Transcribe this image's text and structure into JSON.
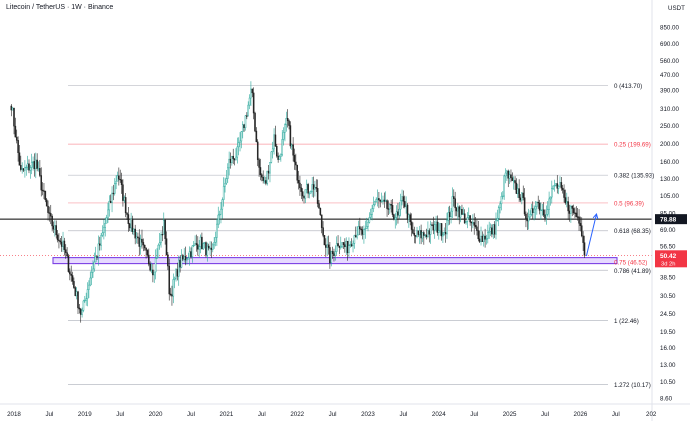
{
  "header": {
    "symbol_title": "Litecoin / TetherUS · 1W · Binance",
    "currency": "USDT"
  },
  "colors": {
    "up": "#26a69a",
    "down": "#222222",
    "fib_gray": "#b2b5be",
    "fib_red": "#f23645",
    "box_fill": "#e6d9ff",
    "box_border": "#7b3fe4",
    "arrow": "#2962ff",
    "price_line": "#000000",
    "last_price_bg": "#f23645"
  },
  "chart_data": {
    "type": "candlestick",
    "title": "Litecoin / TetherUS · 1W · Binance",
    "y_axis_ticks": [
      "850.00",
      "690.00",
      "560.00",
      "470.00",
      "390.00",
      "310.00",
      "250.00",
      "200.00",
      "160.00",
      "130.00",
      "105.00",
      "85.00",
      "69.00",
      "56.50",
      "46.00",
      "38.50",
      "30.50",
      "24.50",
      "19.50",
      "16.00",
      "13.00",
      "10.50",
      "8.60"
    ],
    "x_axis_ticks": [
      "2018",
      "Jul",
      "2019",
      "Jul",
      "2020",
      "Jul",
      "2021",
      "Jul",
      "2022",
      "Jul",
      "2023",
      "Jul",
      "2024",
      "Jul",
      "2025",
      "Jul",
      "2026",
      "Jul",
      "202"
    ],
    "y_scale": "log",
    "ylim": [
      8.0,
      1000
    ],
    "fib_levels": [
      {
        "label": "0 (413.70)",
        "value": 413.7,
        "style": "gray"
      },
      {
        "label": "0.25 (199.69)",
        "value": 199.69,
        "style": "red"
      },
      {
        "label": "0.382 (135.93)",
        "value": 135.93,
        "style": "gray"
      },
      {
        "label": "0.5 (96.39)",
        "value": 96.39,
        "style": "red"
      },
      {
        "label": "0.618 (68.35)",
        "value": 68.35,
        "style": "gray"
      },
      {
        "label": "0.75 (46.52)",
        "value": 46.52,
        "style": "red"
      },
      {
        "label": "0.786 (41.89)",
        "value": 41.89,
        "style": "gray"
      },
      {
        "label": "1 (22.46)",
        "value": 22.46,
        "style": "gray"
      },
      {
        "label": "1.272 (10.17)",
        "value": 10.17,
        "style": "gray"
      }
    ],
    "horizontal_line": {
      "label": "78.88",
      "value": 78.88
    },
    "last_price": {
      "label": "50.42",
      "countdown": "3d 2h",
      "value": 50.42
    },
    "support_zone": {
      "low": 45.5,
      "high": 49.0
    },
    "anchors": [
      {
        "date": "2017-12-18",
        "price": 330
      },
      {
        "date": "2018-02-05",
        "price": 140
      },
      {
        "date": "2018-04-23",
        "price": 160
      },
      {
        "date": "2018-07-01",
        "price": 80
      },
      {
        "date": "2018-09-15",
        "price": 55
      },
      {
        "date": "2018-12-15",
        "price": 24
      },
      {
        "date": "2019-02-01",
        "price": 40
      },
      {
        "date": "2019-03-25",
        "price": 60
      },
      {
        "date": "2019-06-20",
        "price": 140
      },
      {
        "date": "2019-08-15",
        "price": 78
      },
      {
        "date": "2019-12-20",
        "price": 42
      },
      {
        "date": "2020-02-15",
        "price": 75
      },
      {
        "date": "2020-03-15",
        "price": 30
      },
      {
        "date": "2020-05-01",
        "price": 45
      },
      {
        "date": "2020-08-15",
        "price": 60
      },
      {
        "date": "2020-10-15",
        "price": 50
      },
      {
        "date": "2020-12-01",
        "price": 90
      },
      {
        "date": "2021-01-15",
        "price": 160
      },
      {
        "date": "2021-03-01",
        "price": 180
      },
      {
        "date": "2021-05-10",
        "price": 390
      },
      {
        "date": "2021-06-20",
        "price": 140
      },
      {
        "date": "2021-07-20",
        "price": 120
      },
      {
        "date": "2021-09-05",
        "price": 220
      },
      {
        "date": "2021-09-25",
        "price": 160
      },
      {
        "date": "2021-11-10",
        "price": 270
      },
      {
        "date": "2021-12-20",
        "price": 150
      },
      {
        "date": "2022-02-01",
        "price": 110
      },
      {
        "date": "2022-04-01",
        "price": 120
      },
      {
        "date": "2022-05-15",
        "price": 65
      },
      {
        "date": "2022-06-20",
        "price": 48
      },
      {
        "date": "2022-08-01",
        "price": 60
      },
      {
        "date": "2022-09-15",
        "price": 55
      },
      {
        "date": "2022-11-01",
        "price": 68
      },
      {
        "date": "2022-12-20",
        "price": 65
      },
      {
        "date": "2023-01-20",
        "price": 90
      },
      {
        "date": "2023-02-10",
        "price": 100
      },
      {
        "date": "2023-04-15",
        "price": 90
      },
      {
        "date": "2023-06-05",
        "price": 80
      },
      {
        "date": "2023-07-01",
        "price": 105
      },
      {
        "date": "2023-08-20",
        "price": 64
      },
      {
        "date": "2023-10-15",
        "price": 65
      },
      {
        "date": "2023-12-15",
        "price": 72
      },
      {
        "date": "2024-02-01",
        "price": 68
      },
      {
        "date": "2024-03-15",
        "price": 100
      },
      {
        "date": "2024-05-01",
        "price": 82
      },
      {
        "date": "2024-06-15",
        "price": 75
      },
      {
        "date": "2024-08-10",
        "price": 62
      },
      {
        "date": "2024-10-15",
        "price": 70
      },
      {
        "date": "2024-11-20",
        "price": 100
      },
      {
        "date": "2024-12-10",
        "price": 140
      },
      {
        "date": "2025-01-20",
        "price": 120
      },
      {
        "date": "2025-03-01",
        "price": 105
      },
      {
        "date": "2025-04-10",
        "price": 75
      },
      {
        "date": "2025-05-15",
        "price": 100
      },
      {
        "date": "2025-07-01",
        "price": 85
      },
      {
        "date": "2025-08-20",
        "price": 120
      },
      {
        "date": "2025-09-20",
        "price": 115
      },
      {
        "date": "2025-10-15",
        "price": 95
      },
      {
        "date": "2025-11-20",
        "price": 88
      },
      {
        "date": "2026-01-01",
        "price": 78
      },
      {
        "date": "2026-01-25",
        "price": 50.42
      }
    ],
    "projection_arrow": {
      "from": {
        "date": "2026-02-01",
        "price": 50
      },
      "to": {
        "date": "2026-03-25",
        "price": 84
      }
    }
  }
}
